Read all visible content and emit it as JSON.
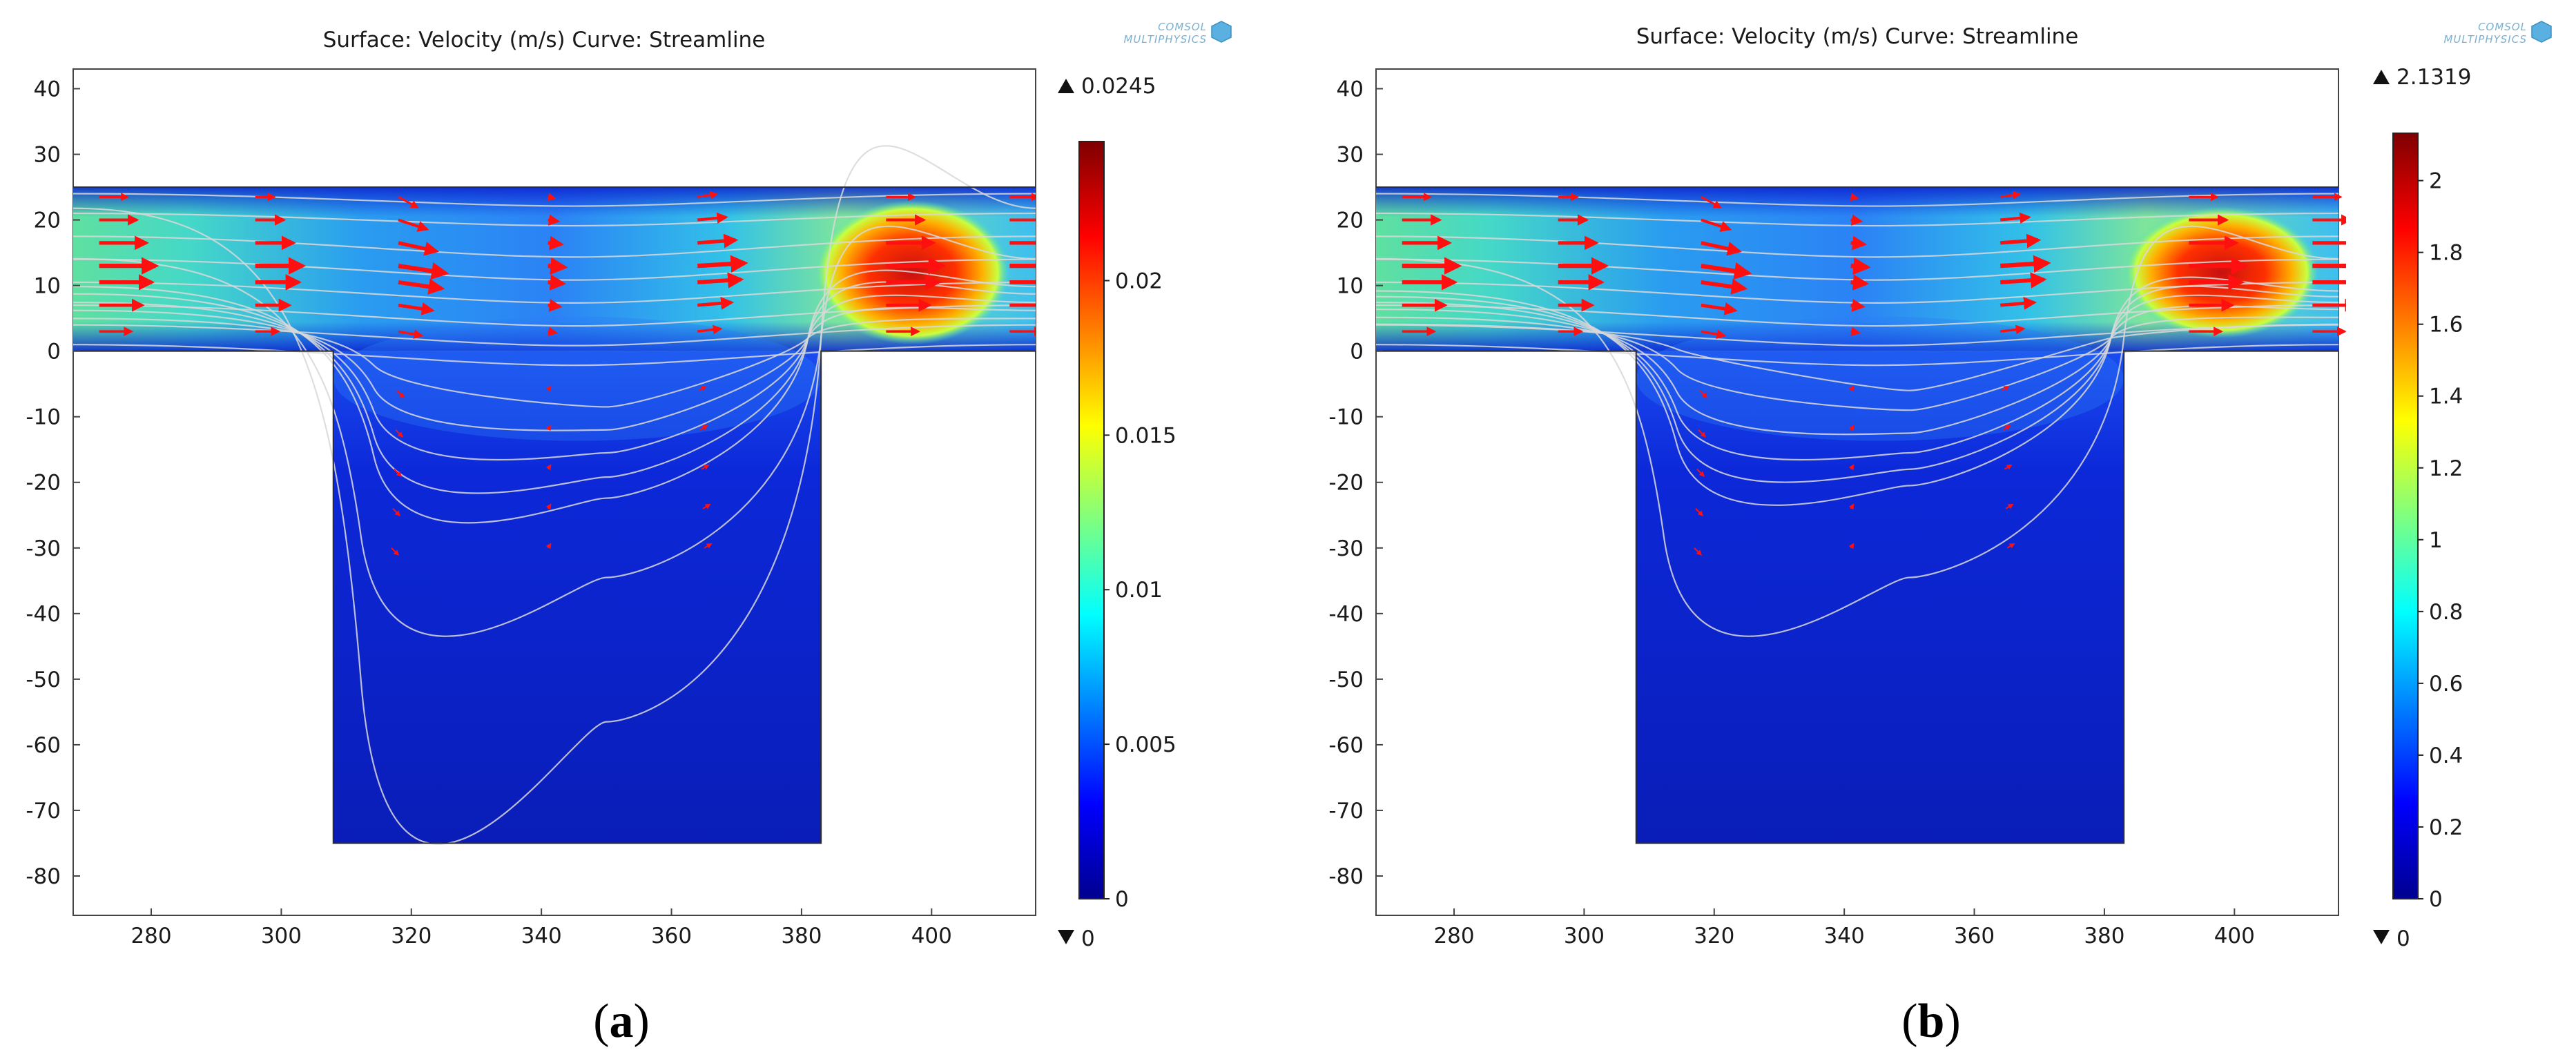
{
  "chart_data": [
    {
      "type": "heatmap",
      "panel_label": "a",
      "title": "Surface: Velocity (m/s)  Curve: Streamline",
      "logo": [
        "COMSOL",
        "MULTIPHYSICS"
      ],
      "x_ticks": [
        "280",
        "300",
        "320",
        "340",
        "360",
        "380",
        "400"
      ],
      "y_ticks": [
        "40",
        "30",
        "20",
        "10",
        "0",
        "-10",
        "-20",
        "-30",
        "-40",
        "-50",
        "-60",
        "-70",
        "-80"
      ],
      "xlim": [
        268,
        416
      ],
      "ylim": [
        -86,
        43
      ],
      "colorbar": {
        "max_label": "0.0245",
        "min_label": "0",
        "max": 0.0245,
        "min": 0,
        "ticks": [
          "0.02",
          "0.015",
          "0.01",
          "0.005",
          "0"
        ],
        "tick_values": [
          0.02,
          0.015,
          0.01,
          0.005,
          0
        ]
      },
      "geometry": {
        "channel_y": [
          0,
          25
        ],
        "cavity_x": [
          308,
          383
        ],
        "cavity_y": [
          -75,
          0
        ]
      },
      "hotspot": {
        "x": 397,
        "y": 12,
        "rx": 15,
        "ry": 11
      },
      "streamline_depths": [
        -22.4,
        -19.2,
        -15.5,
        -12,
        -8.5,
        1,
        4,
        7,
        10.5,
        14,
        17.5,
        21,
        24
      ],
      "streamline_deep": [
        -34.5,
        -56.5
      ],
      "arrow_cols": [
        272,
        296,
        318,
        341,
        364,
        393,
        412
      ]
    },
    {
      "type": "heatmap",
      "panel_label": "b",
      "title": "Surface: Velocity (m/s)  Curve: Streamline",
      "logo": [
        "COMSOL",
        "MULTIPHYSICS"
      ],
      "x_ticks": [
        "280",
        "300",
        "320",
        "340",
        "360",
        "380",
        "400"
      ],
      "y_ticks": [
        "40",
        "30",
        "20",
        "10",
        "0",
        "-10",
        "-20",
        "-30",
        "-40",
        "-50",
        "-60",
        "-70",
        "-80"
      ],
      "xlim": [
        268,
        416
      ],
      "ylim": [
        -86,
        43
      ],
      "colorbar": {
        "max_label": "2.1319",
        "min_label": "0",
        "max": 2.1319,
        "min": 0,
        "ticks": [
          "2",
          "1.8",
          "1.6",
          "1.4",
          "1.2",
          "1",
          "0.8",
          "0.6",
          "0.4",
          "0.2",
          "0"
        ],
        "tick_values": [
          2,
          1.8,
          1.6,
          1.4,
          1.2,
          1,
          0.8,
          0.6,
          0.4,
          0.2,
          0
        ]
      },
      "geometry": {
        "channel_y": [
          0,
          25
        ],
        "cavity_x": [
          308,
          383
        ],
        "cavity_y": [
          -75,
          0
        ]
      },
      "hotspot": {
        "x": 398,
        "y": 12,
        "rx": 15,
        "ry": 10
      },
      "streamline_depths": [
        -20.5,
        -18,
        -15.5,
        -12.5,
        -9,
        -6,
        1,
        4,
        7,
        10.5,
        14,
        17.5,
        21,
        24
      ],
      "streamline_deep": [
        -34.5
      ],
      "arrow_cols": [
        272,
        296,
        318,
        341,
        364,
        393,
        412
      ]
    }
  ]
}
